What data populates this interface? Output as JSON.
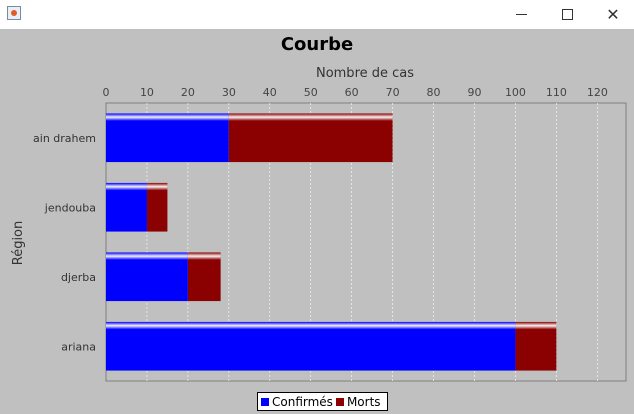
{
  "window": {
    "minimize_glyph": "",
    "close_glyph": "✕",
    "icon": "java-icon"
  },
  "chart_data": {
    "type": "bar",
    "orientation": "horizontal",
    "stacked": true,
    "title": "Courbe",
    "xlabel": "Nombre de cas",
    "ylabel": "Région",
    "categories": [
      "ain drahem",
      "jendouba",
      "djerba",
      "ariana"
    ],
    "series": [
      {
        "name": "Confirmés",
        "values": [
          30,
          10,
          20,
          100
        ],
        "color": "#0000ff"
      },
      {
        "name": "Morts",
        "values": [
          40,
          5,
          8,
          10
        ],
        "color": "#8b0000"
      }
    ],
    "xlim": [
      0,
      127
    ],
    "xticks": [
      0,
      10,
      20,
      30,
      40,
      50,
      60,
      70,
      80,
      90,
      100,
      110,
      120
    ],
    "grid": true,
    "legend_position": "bottom",
    "background": "#c0c0c0"
  }
}
